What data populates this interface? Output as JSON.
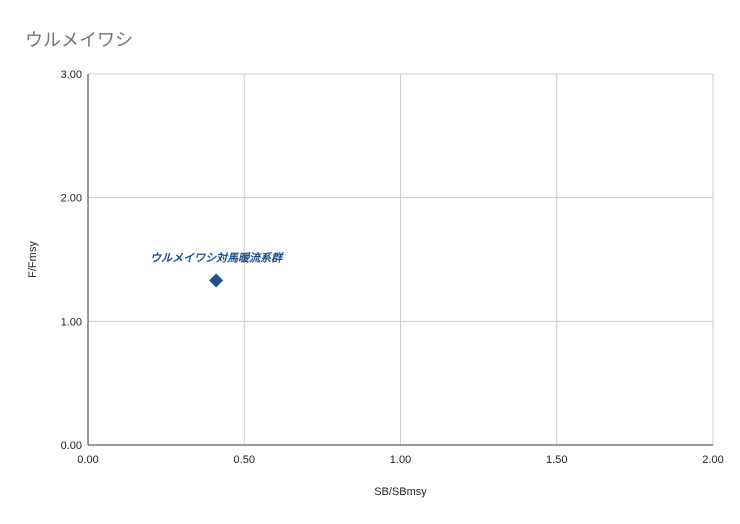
{
  "title": "ウルメイワシ",
  "colors": {
    "grid": "#cccccc",
    "axis": "#333333",
    "marker": "#1f4e8c",
    "label": "#1f4e8c"
  },
  "chart_data": {
    "type": "scatter",
    "title": "ウルメイワシ",
    "xlabel": "SB/SBmsy",
    "ylabel": "F/Fmsy",
    "xlim": [
      0,
      2
    ],
    "ylim": [
      0,
      3
    ],
    "xticks": [
      0,
      0.5,
      1,
      1.5,
      2
    ],
    "xtick_labels": [
      "0.00",
      "0.50",
      "1.00",
      "1.50",
      "2.00"
    ],
    "yticks": [
      0,
      1,
      2,
      3
    ],
    "ytick_labels": [
      "0.00",
      "1.00",
      "2.00",
      "3.00"
    ],
    "grid": true,
    "marker": "diamond",
    "points": [
      {
        "x": 0.41,
        "y": 1.33,
        "label": "ウルメイワシ対馬暖流系群"
      }
    ]
  }
}
